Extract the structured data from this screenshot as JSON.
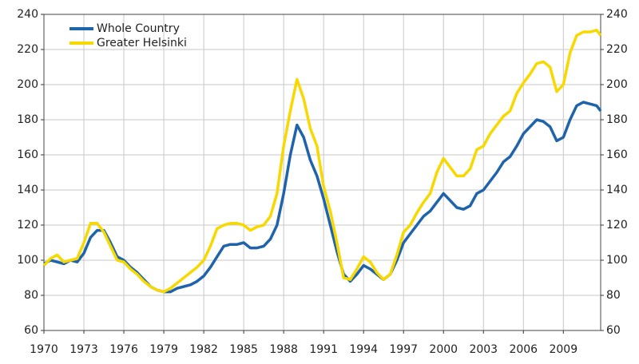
{
  "chart_data": {
    "type": "line",
    "x": [
      1970,
      1970.5,
      1971,
      1971.5,
      1972,
      1972.5,
      1973,
      1973.5,
      1974,
      1974.5,
      1975,
      1975.5,
      1976,
      1976.5,
      1977,
      1977.5,
      1978,
      1978.5,
      1979,
      1979.5,
      1980,
      1980.5,
      1981,
      1981.5,
      1982,
      1982.5,
      1983,
      1983.5,
      1984,
      1984.5,
      1985,
      1985.5,
      1986,
      1986.5,
      1987,
      1987.5,
      1988,
      1988.5,
      1989,
      1989.5,
      1990,
      1990.5,
      1991,
      1991.5,
      1992,
      1992.5,
      1993,
      1993.5,
      1994,
      1994.5,
      1995,
      1995.5,
      1996,
      1996.5,
      1997,
      1997.5,
      1998,
      1998.5,
      1999,
      1999.5,
      2000,
      2000.5,
      2001,
      2001.5,
      2002,
      2002.5,
      2003,
      2003.5,
      2004,
      2004.5,
      2005,
      2005.5,
      2006,
      2006.5,
      2007,
      2007.5,
      2008,
      2008.5,
      2009,
      2009.5,
      2010,
      2010.5,
      2011,
      2011.5,
      2011.8
    ],
    "series": [
      {
        "name": "Whole Country",
        "color": "#1f63ab",
        "values": [
          98,
          100,
          99,
          98,
          100,
          99,
          104,
          113,
          117,
          117,
          110,
          102,
          100,
          96,
          93,
          89,
          85,
          83,
          82,
          82,
          84,
          85,
          86,
          88,
          91,
          96,
          102,
          108,
          109,
          109,
          110,
          107,
          107,
          108,
          112,
          120,
          138,
          160,
          177,
          170,
          157,
          148,
          135,
          120,
          105,
          92,
          88,
          92,
          97,
          95,
          92,
          89,
          92,
          100,
          110,
          115,
          120,
          125,
          128,
          133,
          138,
          134,
          130,
          129,
          131,
          138,
          140,
          145,
          150,
          156,
          159,
          165,
          172,
          176,
          180,
          179,
          176,
          168,
          170,
          180,
          188,
          190,
          189,
          188,
          185
        ]
      },
      {
        "name": "Greater Helsinki",
        "color": "#f7d800",
        "values": [
          97,
          101,
          103,
          99,
          100,
          101,
          110,
          121,
          121,
          116,
          108,
          100,
          99,
          95,
          92,
          88,
          85,
          83,
          82,
          84,
          87,
          90,
          93,
          96,
          100,
          108,
          118,
          120,
          121,
          121,
          120,
          117,
          119,
          120,
          125,
          138,
          165,
          185,
          203,
          192,
          175,
          165,
          142,
          128,
          110,
          90,
          89,
          95,
          102,
          99,
          93,
          89,
          92,
          103,
          116,
          120,
          127,
          133,
          138,
          150,
          158,
          153,
          148,
          148,
          152,
          163,
          165,
          172,
          177,
          182,
          185,
          195,
          201,
          206,
          212,
          213,
          210,
          196,
          200,
          218,
          228,
          230,
          230,
          231,
          228
        ]
      }
    ],
    "xlim": [
      1970,
      2011.8
    ],
    "xticks": [
      1970,
      1973,
      1976,
      1979,
      1982,
      1985,
      1988,
      1991,
      1994,
      1997,
      2000,
      2003,
      2006,
      2009
    ],
    "ylim": [
      60,
      240
    ],
    "yticks": [
      60,
      80,
      100,
      120,
      140,
      160,
      180,
      200,
      220,
      240
    ],
    "y2lim": [
      60,
      240
    ],
    "y2ticks": [
      60,
      80,
      100,
      120,
      140,
      160,
      180,
      200,
      220,
      240
    ],
    "grid": true,
    "legend": "upper left"
  }
}
